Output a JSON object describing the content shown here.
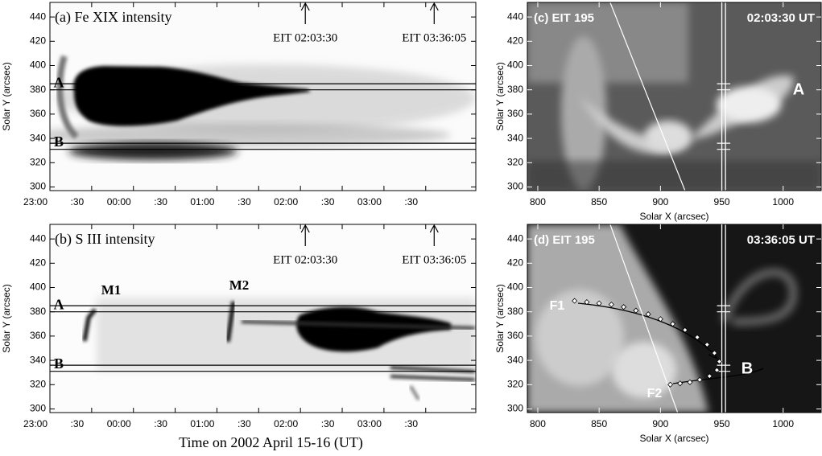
{
  "chart_data": [
    {
      "type": "timeslice",
      "title": "(a) Fe XIX intensity",
      "y_label": "Solar Y (arcsec)",
      "xlim": [
        23,
        28.1
      ],
      "xticks": [
        {
          "value": 23,
          "label": "23:00"
        },
        {
          "value": 23.5,
          "label": ":30"
        },
        {
          "value": 24,
          "label": "00:00"
        },
        {
          "value": 24.5,
          "label": ":30"
        },
        {
          "value": 25,
          "label": "01:00"
        },
        {
          "value": 25.5,
          "label": ":30"
        },
        {
          "value": 26,
          "label": "02:00"
        },
        {
          "value": 26.5,
          "label": ":30"
        },
        {
          "value": 27,
          "label": "03:00"
        },
        {
          "value": 27.5,
          "label": ":30"
        }
      ],
      "ylim": [
        297,
        452
      ],
      "yticks": [
        300,
        320,
        340,
        360,
        380,
        400,
        420,
        440
      ],
      "slits": [
        {
          "name": "A",
          "values": [
            380,
            385
          ]
        },
        {
          "name": "B",
          "values": [
            331,
            336
          ]
        }
      ],
      "annotations": [
        {
          "text": "EIT 02:03:30",
          "x": 26.0583
        },
        {
          "text": "EIT 03:36:05",
          "x": 27.6014
        }
      ]
    },
    {
      "type": "timeslice",
      "title": "(b) S III intensity",
      "y_label": "Solar Y (arcsec)",
      "x_label": "Time on 2002 April 15-16 (UT)",
      "xlim": [
        23,
        28.1
      ],
      "xticks": [
        {
          "value": 23,
          "label": "23:00"
        },
        {
          "value": 23.5,
          "label": ":30"
        },
        {
          "value": 24,
          "label": "00:00"
        },
        {
          "value": 24.5,
          "label": ":30"
        },
        {
          "value": 25,
          "label": "01:00"
        },
        {
          "value": 25.5,
          "label": ":30"
        },
        {
          "value": 26,
          "label": "02:00"
        },
        {
          "value": 26.5,
          "label": ":30"
        },
        {
          "value": 27,
          "label": "03:00"
        },
        {
          "value": 27.5,
          "label": ":30"
        }
      ],
      "ylim": [
        297,
        452
      ],
      "yticks": [
        300,
        320,
        340,
        360,
        380,
        400,
        420,
        440
      ],
      "slits": [
        {
          "name": "A",
          "values": [
            380,
            385
          ]
        },
        {
          "name": "B",
          "values": [
            331,
            336
          ]
        }
      ],
      "annotations": [
        {
          "text": "EIT 02:03:30",
          "x": 26.0583
        },
        {
          "text": "EIT 03:36:05",
          "x": 27.6014
        }
      ],
      "labels": [
        "M1",
        "M2"
      ]
    },
    {
      "type": "image",
      "title": "(c) EIT 195",
      "time": "02:03:30 UT",
      "x_label": "Solar X (arcsec)",
      "y_label": "Solar Y (arcsec)",
      "xlim": [
        791.5,
        1031
      ],
      "xticks": [
        800,
        850,
        900,
        950,
        1000
      ],
      "ylim": [
        297,
        452
      ],
      "yticks": [
        300,
        320,
        340,
        360,
        380,
        400,
        420,
        440
      ],
      "slit_x": [
        950,
        953
      ],
      "slit_y": [
        331,
        336,
        380,
        385
      ],
      "limb": {
        "x": [
          859,
          920
        ],
        "y": [
          452,
          297
        ]
      },
      "labels": [
        "A"
      ]
    },
    {
      "type": "image",
      "title": "(d) EIT 195",
      "time": "03:36:05 UT",
      "x_label": "Solar X (arcsec)",
      "y_label": "Solar Y (arcsec)",
      "xlim": [
        791.5,
        1031
      ],
      "xticks": [
        800,
        850,
        900,
        950,
        1000
      ],
      "ylim": [
        297,
        452
      ],
      "yticks": [
        300,
        320,
        340,
        360,
        380,
        400,
        420,
        440
      ],
      "slit_x": [
        950,
        953
      ],
      "slit_y": [
        331,
        336,
        380,
        385
      ],
      "limb": {
        "x": [
          859,
          914
        ],
        "y": [
          452,
          297
        ]
      },
      "points": {
        "x": [
          830,
          840,
          850,
          860,
          870,
          880,
          890,
          900,
          910,
          920,
          930,
          938,
          944,
          948,
          946,
          940,
          932,
          924,
          916,
          908
        ],
        "y": [
          389,
          388,
          387,
          386,
          384,
          381,
          378,
          374,
          370,
          365,
          359,
          353,
          346,
          339,
          332,
          327,
          324,
          322,
          321,
          320
        ]
      },
      "labels": [
        "F1",
        "F2",
        "B"
      ]
    }
  ]
}
